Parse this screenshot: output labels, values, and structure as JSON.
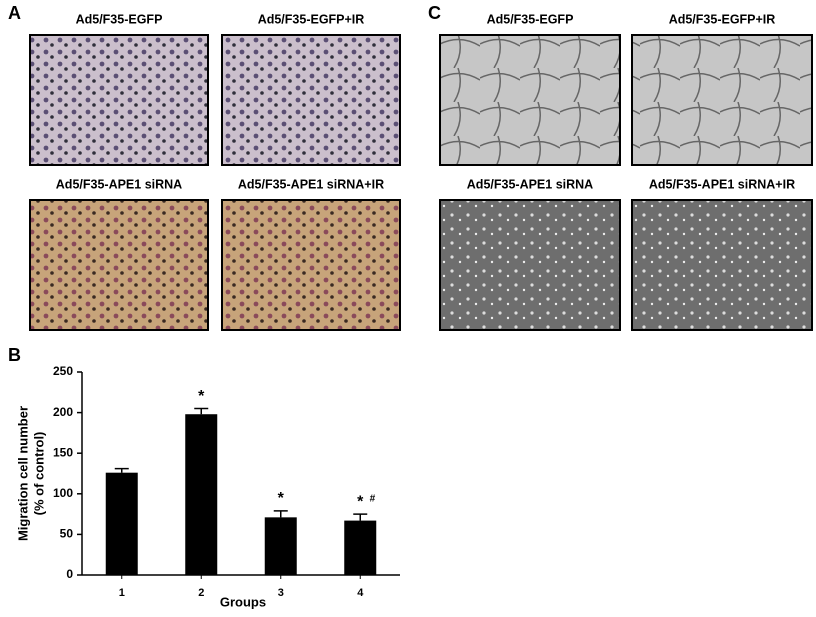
{
  "panels": {
    "A": {
      "label": "A",
      "images": [
        {
          "caption": "Ad5/F35-EGFP"
        },
        {
          "caption": "Ad5/F35-EGFP+IR"
        },
        {
          "caption": "Ad5/F35-APE1 siRNA"
        },
        {
          "caption": "Ad5/F35-APE1 siRNA+IR"
        }
      ]
    },
    "B": {
      "label": "B"
    },
    "C": {
      "label": "C",
      "images": [
        {
          "caption": "Ad5/F35-EGFP"
        },
        {
          "caption": "Ad5/F35-EGFP+IR"
        },
        {
          "caption": "Ad5/F35-APE1 siRNA"
        },
        {
          "caption": "Ad5/F35-APE1 siRNA+IR"
        }
      ]
    }
  },
  "chart_data": {
    "type": "bar",
    "categories": [
      "1",
      "2",
      "3",
      "4"
    ],
    "values": [
      126,
      198,
      71,
      67
    ],
    "errors": [
      5,
      7,
      8,
      8
    ],
    "significance": [
      null,
      "*",
      "*",
      "*"
    ],
    "significance_2": [
      null,
      null,
      null,
      "#"
    ],
    "color": "#000000",
    "xlabel": "Groups",
    "ylabel": [
      "Migration cell number",
      "(% of control)"
    ],
    "ylim": [
      0,
      250
    ],
    "yticks": [
      0,
      50,
      100,
      150,
      200,
      250
    ]
  }
}
